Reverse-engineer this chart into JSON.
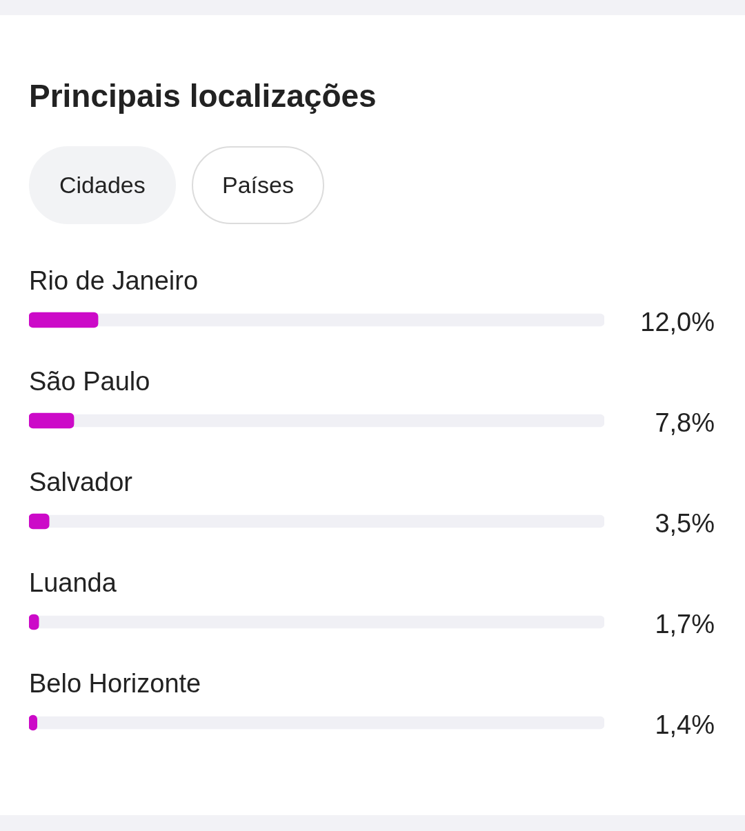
{
  "chart_data": {
    "type": "bar",
    "orientation": "horizontal",
    "title": "Principais localizações",
    "annotations": [
      "Cidades",
      "Países"
    ],
    "categories": [
      "Rio de Janeiro",
      "São Paulo",
      "Salvador",
      "Luanda",
      "Belo Horizonte"
    ],
    "series": [
      {
        "color": "#cc0ac8",
        "values": [
          12.0,
          7.8,
          3.5,
          1.7,
          1.4
        ],
        "value_labels": [
          "12,0%",
          "7,8%",
          "3,5%",
          "1,7%",
          "1,4%"
        ]
      },
      {
        "color": "#f0f0f5",
        "values": [
          100,
          100,
          100,
          100,
          100
        ]
      }
    ],
    "xlim": [
      0,
      100
    ],
    "tick_labels": false
  }
}
